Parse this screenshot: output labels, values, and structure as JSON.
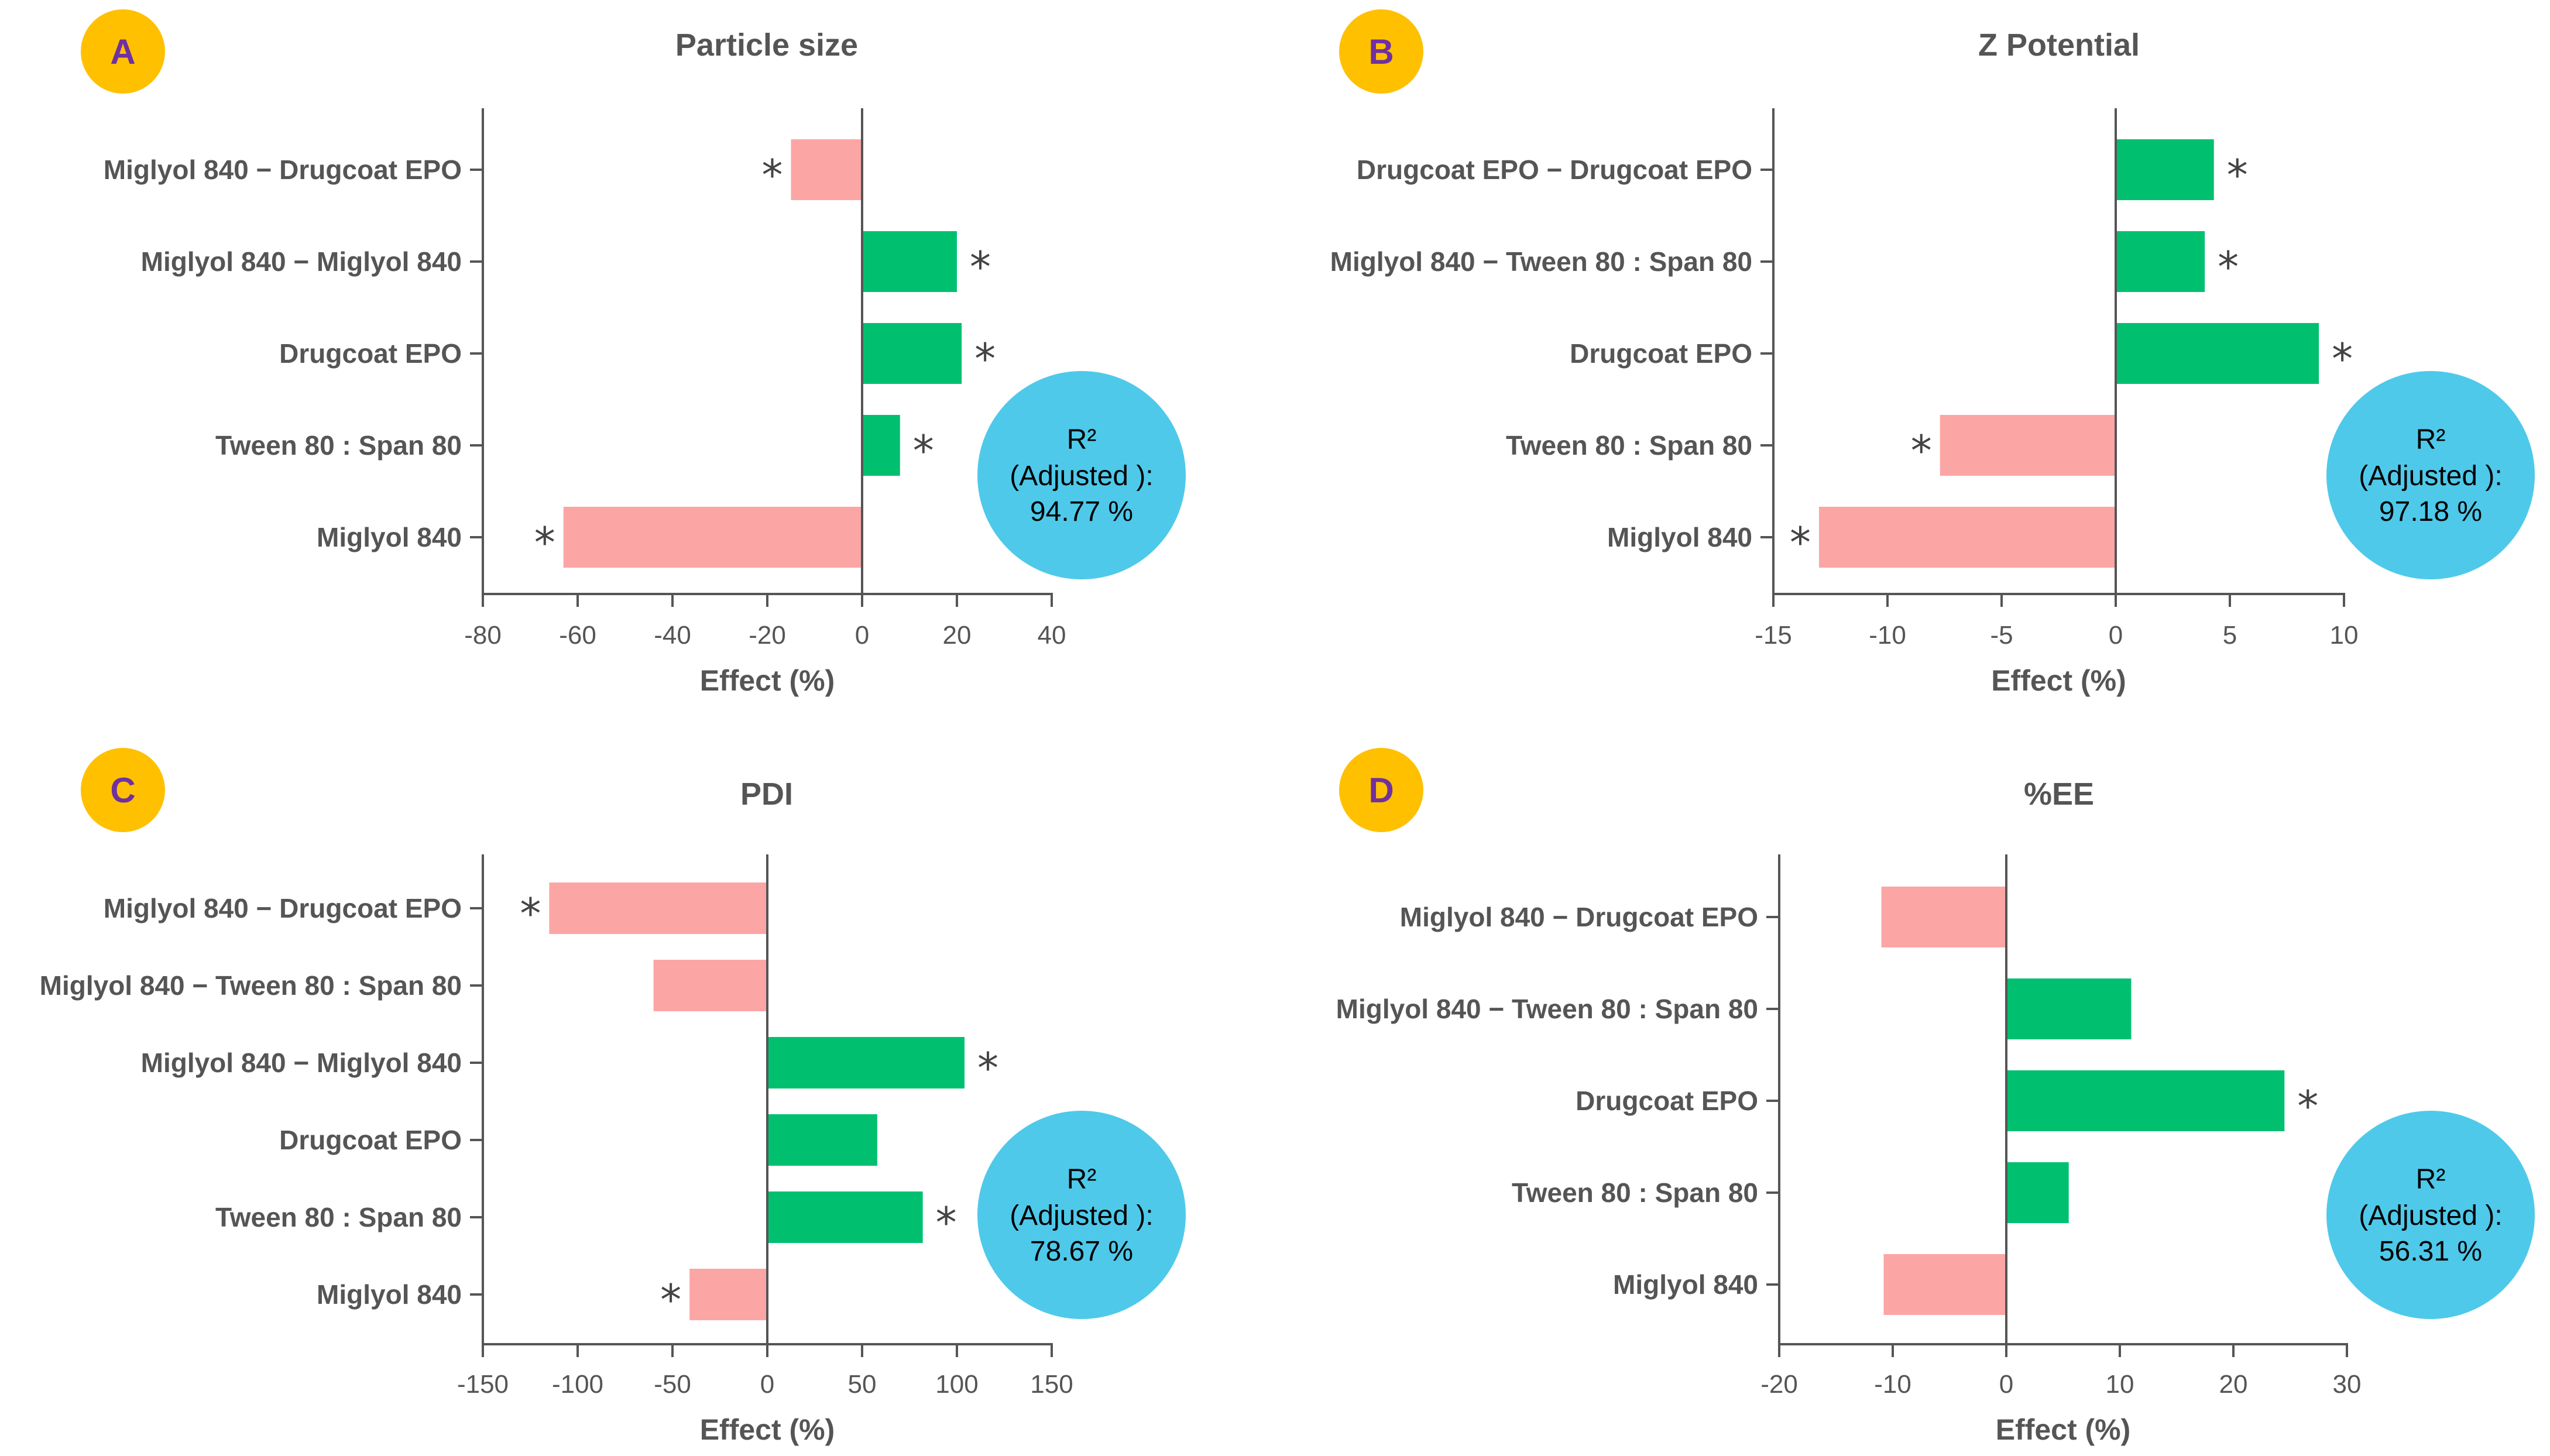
{
  "colors": {
    "positive": "#00c070",
    "negative": "#fca5a5",
    "badge": "#ffc000",
    "badge_text": "#7030a0",
    "r2_circle": "#4ec9ea",
    "axis": "#555555"
  },
  "chart_data": [
    {
      "id": "A",
      "type": "bar",
      "orientation": "horizontal",
      "title": "Particle size",
      "xlabel": "Effect (%)",
      "xlim": [
        -80,
        40
      ],
      "xticks": [
        -80,
        -60,
        -40,
        -20,
        0,
        20,
        40
      ],
      "categories": [
        "Miglyol 840 − Drugcoat EPO",
        "Miglyol 840 − Miglyol 840",
        "Drugcoat EPO",
        "Tween 80 : Span 80",
        "Miglyol 840"
      ],
      "values": [
        -15,
        20,
        21,
        8,
        -63
      ],
      "significant": [
        true,
        true,
        true,
        true,
        true
      ],
      "r2": {
        "line1": "R²",
        "line2": "(Adjusted ):",
        "line3": "94.77 %"
      }
    },
    {
      "id": "B",
      "type": "bar",
      "orientation": "horizontal",
      "title": "Z Potential",
      "xlabel": "Effect (%)",
      "xlim": [
        -15,
        10
      ],
      "xticks": [
        -15,
        -10,
        -5,
        0,
        5,
        10
      ],
      "categories": [
        "Drugcoat EPO − Drugcoat EPO",
        "Miglyol 840 − Tween 80 : Span 80",
        "Drugcoat EPO",
        "Tween 80 : Span 80",
        "Miglyol 840"
      ],
      "values": [
        4.3,
        3.9,
        8.9,
        -7.7,
        -13
      ],
      "significant": [
        true,
        true,
        true,
        true,
        true
      ],
      "r2": {
        "line1": "R²",
        "line2": "(Adjusted ):",
        "line3": "97.18 %"
      }
    },
    {
      "id": "C",
      "type": "bar",
      "orientation": "horizontal",
      "title": "PDI",
      "xlabel": "Effect (%)",
      "xlim": [
        -150,
        150
      ],
      "xticks": [
        -150,
        -100,
        -50,
        0,
        50,
        100,
        150
      ],
      "categories": [
        "Miglyol 840 − Drugcoat EPO",
        "Miglyol 840 − Tween 80 : Span 80",
        "Miglyol 840 − Miglyol 840",
        "Drugcoat EPO",
        "Tween 80 : Span 80",
        "Miglyol 840"
      ],
      "values": [
        -115,
        -60,
        104,
        58,
        82,
        -41
      ],
      "significant": [
        true,
        false,
        true,
        false,
        true,
        true
      ],
      "r2": {
        "line1": "R²",
        "line2": "(Adjusted ):",
        "line3": "78.67 %"
      }
    },
    {
      "id": "D",
      "type": "bar",
      "orientation": "horizontal",
      "title": "%EE",
      "xlabel": "Effect (%)",
      "xlim": [
        -20,
        30
      ],
      "xticks": [
        -20,
        -10,
        0,
        10,
        20,
        30
      ],
      "categories": [
        "Miglyol 840 − Drugcoat EPO",
        "Miglyol 840 − Tween 80 : Span 80",
        "Drugcoat EPO",
        "Tween 80 : Span 80",
        "Miglyol 840"
      ],
      "values": [
        -11,
        11,
        24.5,
        5.5,
        -10.8
      ],
      "significant": [
        false,
        false,
        true,
        false,
        false
      ],
      "r2": {
        "line1": "R²",
        "line2": "(Adjusted ):",
        "line3": "56.31 %"
      }
    }
  ],
  "significance_marker": "*"
}
